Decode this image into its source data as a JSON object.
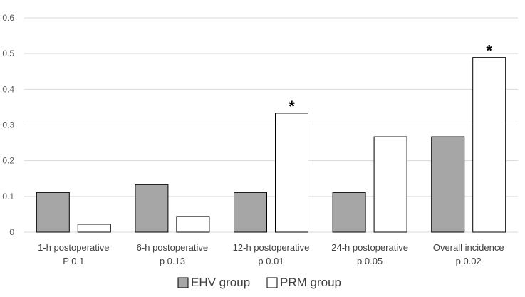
{
  "chart_data": {
    "type": "bar",
    "categories": [
      [
        "1-h postoperative",
        "P 0.1"
      ],
      [
        "6-h postoperative",
        "p 0.13"
      ],
      [
        "12-h postoperative",
        "p 0.01"
      ],
      [
        "24-h postoperative",
        "p   0.05"
      ],
      [
        "Overall incidence",
        "p 0.02"
      ]
    ],
    "series": [
      {
        "name": "EHV group",
        "color": "#a6a6a6",
        "values": [
          0.111,
          0.133,
          0.111,
          0.111,
          0.267
        ]
      },
      {
        "name": "PRM group",
        "color": "#ffffff",
        "values": [
          0.022,
          0.044,
          0.333,
          0.267,
          0.489
        ]
      }
    ],
    "annotations": [
      {
        "category_index": 2,
        "series_index": 1,
        "text": "*"
      },
      {
        "category_index": 4,
        "series_index": 1,
        "text": "*"
      }
    ],
    "ylim": [
      0,
      0.6
    ],
    "yticks": [
      "0",
      "0.1",
      "0.2",
      "0.3",
      "0.4",
      "0.5",
      "0.6"
    ],
    "grid": true,
    "legend_position": "bottom",
    "title": "",
    "xlabel": "",
    "ylabel": ""
  }
}
